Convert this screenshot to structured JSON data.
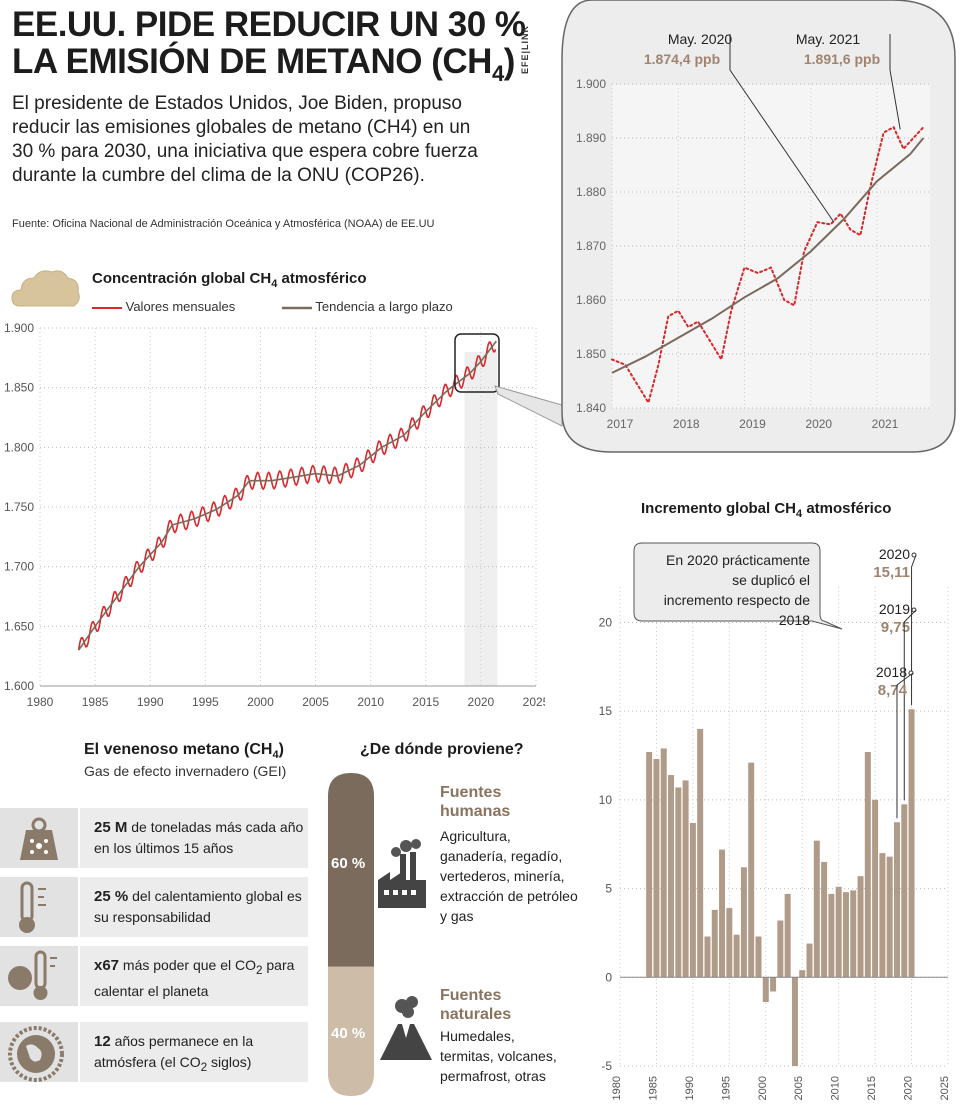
{
  "header": {
    "title_line1": "EE.UU. PIDE REDUCIR UN 30 %",
    "title_line2_main": "LA EMISIÓN DE METANO (CH",
    "title_line2_sub": "4",
    "title_line2_end": ")",
    "intro": "El presidente de Estados Unidos, Joe Biden, propuso reducir las emisiones globales de metano (CH4) en un 30 % para 2030, una iniciativa que espera cobre fuerza durante la cumbre del clima de la ONU (COP26).",
    "source": "Fuente: Oficina Nacional de Administración Oceánica y Atmosférica (NOAA) de EE.UU",
    "agency": "EFE|LINK"
  },
  "colors": {
    "monthly": "#d8282c",
    "trend": "#7a6a5c",
    "bar": "#b09a88",
    "dark_brown": "#7b6b5c",
    "light_brown": "#cdbca8",
    "value_highlight": "#a08470"
  },
  "chart_data": [
    {
      "type": "line",
      "id": "concentration",
      "title_main": "Concentración global CH",
      "title_sub": "4",
      "title_end": " atmosférico",
      "series": [
        {
          "name": "Valores mensuales",
          "seasonal_amplitude": 7,
          "color": "#d8282c"
        },
        {
          "name": "Tendencia a largo plazo",
          "color": "#7a6a5c"
        }
      ],
      "trend_points": [
        [
          1983.5,
          1630
        ],
        [
          1985,
          1650
        ],
        [
          1987,
          1675
        ],
        [
          1989,
          1700
        ],
        [
          1991,
          1720
        ],
        [
          1992,
          1735
        ],
        [
          1994,
          1740
        ],
        [
          1996,
          1748
        ],
        [
          1998,
          1760
        ],
        [
          1999,
          1772
        ],
        [
          2001,
          1772
        ],
        [
          2003,
          1775
        ],
        [
          2005,
          1778
        ],
        [
          2007,
          1776
        ],
        [
          2009,
          1785
        ],
        [
          2011,
          1800
        ],
        [
          2013,
          1810
        ],
        [
          2015,
          1830
        ],
        [
          2017,
          1848
        ],
        [
          2019,
          1862
        ],
        [
          2020,
          1872
        ],
        [
          2021.4,
          1889
        ]
      ],
      "xlim": [
        1980,
        2025
      ],
      "ylim": [
        1600,
        1900
      ],
      "xticks": [
        1980,
        1985,
        1990,
        1995,
        2000,
        2005,
        2010,
        2015,
        2020,
        2025
      ],
      "yticks": [
        1600,
        1650,
        1700,
        1750,
        1800,
        1850,
        1900
      ],
      "ytick_labels": [
        "1.600",
        "1.650",
        "1.700",
        "1.750",
        "1.800",
        "1.850",
        "1.900"
      ],
      "highlight_range": [
        2018.5,
        2021.5
      ]
    },
    {
      "type": "line",
      "id": "zoom",
      "series": [
        {
          "name": "Valores mensuales",
          "color": "#d8282c",
          "style": "dotted",
          "points": [
            [
              2017.0,
              1849
            ],
            [
              2017.2,
              1848
            ],
            [
              2017.4,
              1844
            ],
            [
              2017.55,
              1841
            ],
            [
              2017.7,
              1848
            ],
            [
              2017.85,
              1857
            ],
            [
              2018.0,
              1858
            ],
            [
              2018.15,
              1855
            ],
            [
              2018.3,
              1856
            ],
            [
              2018.5,
              1852
            ],
            [
              2018.65,
              1849
            ],
            [
              2018.8,
              1858
            ],
            [
              2019.0,
              1866
            ],
            [
              2019.2,
              1865
            ],
            [
              2019.4,
              1866
            ],
            [
              2019.6,
              1860
            ],
            [
              2019.75,
              1859
            ],
            [
              2019.9,
              1869
            ],
            [
              2020.1,
              1874.4
            ],
            [
              2020.3,
              1874
            ],
            [
              2020.45,
              1876
            ],
            [
              2020.6,
              1873
            ],
            [
              2020.75,
              1872
            ],
            [
              2020.9,
              1881
            ],
            [
              2021.1,
              1891
            ],
            [
              2021.25,
              1892
            ],
            [
              2021.4,
              1888
            ],
            [
              2021.55,
              1890
            ],
            [
              2021.7,
              1892
            ]
          ]
        },
        {
          "name": "Tendencia a largo plazo",
          "color": "#7a6a5c",
          "points": [
            [
              2017.0,
              1846.5
            ],
            [
              2017.5,
              1849.5
            ],
            [
              2018.0,
              1853
            ],
            [
              2018.5,
              1856.5
            ],
            [
              2019.0,
              1860.5
            ],
            [
              2019.5,
              1864
            ],
            [
              2020.0,
              1869
            ],
            [
              2020.5,
              1875
            ],
            [
              2021.0,
              1882
            ],
            [
              2021.5,
              1887
            ],
            [
              2021.7,
              1890
            ]
          ]
        }
      ],
      "xlim": [
        2017,
        2021.8
      ],
      "ylim": [
        1840,
        1900
      ],
      "xticks": [
        2017,
        2018,
        2019,
        2020,
        2021
      ],
      "yticks": [
        1840,
        1850,
        1860,
        1870,
        1880,
        1890,
        1900
      ],
      "ytick_labels": [
        "1.840",
        "1.850",
        "1.860",
        "1.870",
        "1.880",
        "1.890",
        "1.900"
      ],
      "annotations": [
        {
          "label": "May. 2020",
          "value": "1.874,4 ppb",
          "x": 2020.35,
          "y": 1874.4
        },
        {
          "label": "May. 2021",
          "value": "1.891,6 ppb",
          "x": 2021.35,
          "y": 1891.6
        }
      ]
    },
    {
      "type": "bar",
      "id": "increment",
      "title_main": "Incremento global CH",
      "title_sub": "4",
      "title_end": " atmosférico",
      "x": [
        1984,
        1985,
        1986,
        1987,
        1988,
        1989,
        1990,
        1991,
        1992,
        1993,
        1994,
        1995,
        1996,
        1997,
        1998,
        1999,
        2000,
        2001,
        2002,
        2003,
        2004,
        2005,
        2006,
        2007,
        2008,
        2009,
        2010,
        2011,
        2012,
        2013,
        2014,
        2015,
        2016,
        2017,
        2018,
        2019,
        2020
      ],
      "values": [
        12.7,
        12.3,
        12.9,
        11.4,
        10.7,
        11.1,
        8.7,
        14.0,
        2.3,
        3.8,
        7.2,
        3.9,
        2.4,
        6.2,
        12.1,
        2.3,
        -1.4,
        -0.8,
        3.2,
        4.7,
        -5.0,
        0.4,
        1.9,
        7.7,
        6.5,
        4.7,
        5.1,
        4.8,
        4.9,
        5.7,
        12.7,
        10.0,
        7.0,
        6.8,
        8.74,
        9.75,
        15.11
      ],
      "xlim": [
        1980,
        2025
      ],
      "ylim": [
        -5,
        22
      ],
      "xticks": [
        1980,
        1985,
        1990,
        1995,
        2000,
        2005,
        2010,
        2015,
        2020,
        2025
      ],
      "yticks": [
        -5,
        0,
        5,
        10,
        15,
        20
      ],
      "annotations": [
        {
          "year": "2020",
          "value": "15,11"
        },
        {
          "year": "2019",
          "value": "9,75"
        },
        {
          "year": "2018",
          "value": "8,74"
        }
      ],
      "callout": "En 2020 prácticamente se duplicó el incremento respecto de 2018"
    }
  ],
  "facts": {
    "title_main": "El venenoso metano (CH",
    "title_sub": "4",
    "title_end": ")",
    "subtitle": "Gas de efecto invernadero (GEI)",
    "items": [
      {
        "icon": "weight-icon",
        "bold": "25 M",
        "text": " de toneladas más cada año en los últimos 15 años"
      },
      {
        "icon": "thermometer-icon",
        "bold": "25 %",
        "text": " del calentamiento global es su responsabilidad"
      },
      {
        "icon": "globe-thermometer-icon",
        "bold": "x67",
        "text": " más poder que el CO",
        "sub": "2",
        "text2": " para calentar el planeta"
      },
      {
        "icon": "globe-icon",
        "bold": "12",
        "text": " años permanece en la atmósfera (el CO",
        "sub": "2",
        "text2": " siglos)"
      }
    ]
  },
  "sources": {
    "title": "¿De dónde proviene?",
    "human_pct": "60 %",
    "human_share": 60,
    "natural_pct": "40 %",
    "natural_share": 40,
    "human_title": "Fuentes humanas",
    "human_text": "Agricultura, ganadería, regadío, vertederos, minería, extracción de petróleo y gas",
    "natural_title": "Fuentes naturales",
    "natural_text": "Humedales, termitas, volcanes, permafrost, otras"
  }
}
